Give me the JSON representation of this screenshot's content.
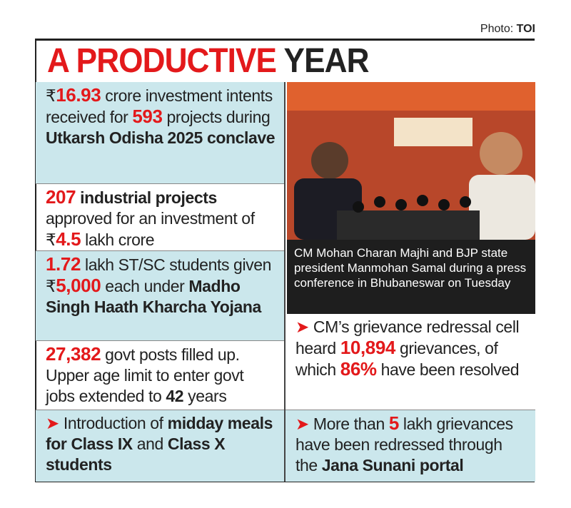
{
  "credit": {
    "label": "Photo:",
    "source": "TOI"
  },
  "title": [
    "A PRODUCTIVE",
    "YEAR"
  ],
  "left_items": [
    [
      "₹",
      "16.93",
      " crore investment intents received for ",
      "593",
      " projects during ",
      "Utkarsh Odisha 2025 conclave"
    ],
    [
      "207",
      " industrial projects",
      " approved for an investment of ₹",
      "4.5",
      " lakh crore"
    ],
    [
      "1.72",
      " lakh ST/SC students given ₹",
      "5,000",
      " each under ",
      "Madho Singh Haath Kharcha Yojana"
    ],
    [
      "27,382",
      " govt posts filled up. Upper age limit to enter govt jobs extended to ",
      "42",
      " years"
    ],
    [
      "Introduction of ",
      "midday meals for Class IX",
      " and ",
      "Class X students"
    ]
  ],
  "caption": "CM Mohan Charan Majhi and BJP state president Manmohan Samal during a press conference in Bhubaneswar on Tuesday",
  "right_items": [
    [
      "CM’s grievance redressal cell heard ",
      "10,894",
      " grievances, of which ",
      "86%",
      " have been resolved"
    ],
    [
      "More than ",
      "5",
      " lakh grievances have been redressed through the ",
      "Jana Sunani portal"
    ]
  ]
}
